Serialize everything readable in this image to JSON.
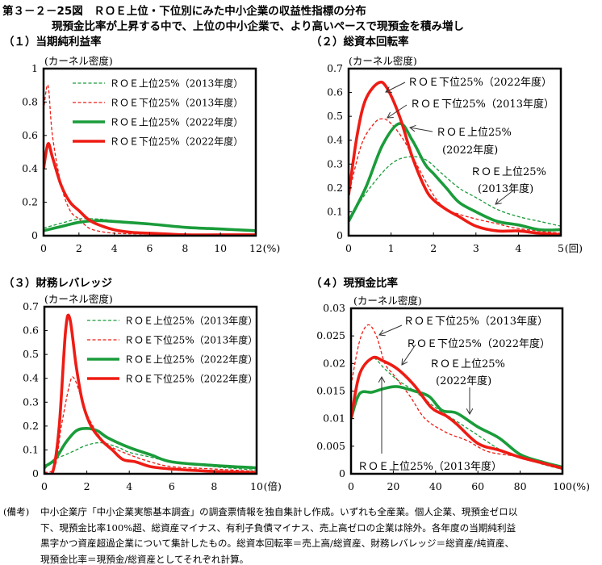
{
  "header": {
    "title": "第３－２－25図　ＲＯＥ上位・下位別にみた中小企業の収益性指標の分布",
    "subtitle": "現預金比率が上昇する中で、上位の中小企業で、より高いペースで現預金を積み増し"
  },
  "notes": {
    "label": "(備考)",
    "lines": [
      "中小企業庁「中小企業実態基本調査」の調査票情報を独自集計し作成。いずれも全産業。個人企業、現預金ゼロ以",
      "下、現預金比率100%超、総資産マイナス、有利子負債マイナス、売上高ゼロの企業は除外。各年度の当期純利益",
      "黒字かつ資産超過企業について集計したもの。総資本回転率＝売上高/総資産、財務レバレッジ＝総資産/純資産、",
      "現預金比率＝現預金/総資産としてそれぞれ計算。"
    ]
  },
  "colors": {
    "green": "#1a9c3a",
    "red": "#ee1c14"
  },
  "chart_data": [
    {
      "type": "line",
      "title": "（１）当期純利益率",
      "ylabel": "(カーネル密度)",
      "xunit": "(%)",
      "xlim": [
        0,
        12
      ],
      "ylim": [
        0,
        1
      ],
      "xticks": [
        0,
        2,
        4,
        6,
        8,
        10,
        12
      ],
      "yticks": [
        0,
        0.2,
        0.4,
        0.6,
        0.8,
        1
      ],
      "ytick_labels": [
        "0",
        "0.2",
        "0.4",
        "0.6",
        "0.8",
        "1"
      ],
      "legend": "top-right",
      "series": [
        {
          "name": "ＲＯＥ上位25%（2013年度）",
          "color": "green",
          "style": "dashed",
          "x": [
            0,
            1,
            2,
            3,
            4,
            6,
            8,
            10,
            12
          ],
          "y": [
            0.045,
            0.075,
            0.1,
            0.1,
            0.09,
            0.07,
            0.055,
            0.04,
            0.025
          ]
        },
        {
          "name": "ＲＯＥ下位25%（2013年度）",
          "color": "red",
          "style": "dashed",
          "x": [
            0,
            0.25,
            0.5,
            1,
            1.5,
            2,
            2.5,
            3,
            4,
            6,
            12
          ],
          "y": [
            0.75,
            0.9,
            0.6,
            0.3,
            0.15,
            0.1,
            0.05,
            0.03,
            0.015,
            0.01,
            0.005
          ]
        },
        {
          "name": "ＲＯＥ上位25%（2022年度）",
          "color": "green",
          "style": "solid",
          "x": [
            0,
            1,
            2,
            3,
            4,
            6,
            8,
            10,
            12
          ],
          "y": [
            0.03,
            0.055,
            0.08,
            0.09,
            0.085,
            0.07,
            0.05,
            0.04,
            0.03
          ]
        },
        {
          "name": "ＲＯＥ下位25%（2022年度）",
          "color": "red",
          "style": "solid",
          "x": [
            0,
            0.25,
            0.5,
            1,
            1.5,
            2,
            2.5,
            3,
            4,
            5,
            6,
            7,
            8,
            10,
            12
          ],
          "y": [
            0.4,
            0.55,
            0.47,
            0.3,
            0.2,
            0.15,
            0.1,
            0.07,
            0.035,
            0.02,
            0.015,
            0.01,
            0.005,
            0.005,
            0.005
          ]
        }
      ]
    },
    {
      "type": "line",
      "title": "（２）総資本回転率",
      "ylabel": "(カーネル密度)",
      "xunit": "(回)",
      "xlim": [
        0,
        5
      ],
      "ylim": [
        0,
        0.7
      ],
      "xticks": [
        0,
        1,
        2,
        3,
        4,
        5
      ],
      "yticks": [
        0,
        0.1,
        0.2,
        0.3,
        0.4,
        0.5,
        0.6,
        0.7
      ],
      "ytick_labels": [
        "0",
        "0.1",
        "0.2",
        "0.3",
        "0.4",
        "0.5",
        "0.6",
        "0.7"
      ],
      "annotations": [
        {
          "lines": [
            "ＲＯＥ下位25%（2022年度）"
          ]
        },
        {
          "lines": [
            "ＲＯＥ下位25%（2013年度）"
          ]
        },
        {
          "lines": [
            "ＲＯＥ上位25%",
            "(2022年度)"
          ]
        },
        {
          "lines": [
            "ＲＯＥ上位25%",
            "(2013年度)"
          ]
        }
      ],
      "series": [
        {
          "name": "ＲＯＥ上位25%（2013年度）",
          "color": "green",
          "style": "dashed",
          "x": [
            0,
            0.5,
            1,
            1.4,
            1.8,
            2.2,
            2.6,
            3,
            3.5,
            4,
            4.5,
            5
          ],
          "y": [
            0.07,
            0.2,
            0.3,
            0.33,
            0.32,
            0.26,
            0.2,
            0.16,
            0.11,
            0.08,
            0.06,
            0.04
          ]
        },
        {
          "name": "ＲＯＥ下位25%（2013年度）",
          "color": "red",
          "style": "dashed",
          "x": [
            0,
            0.3,
            0.6,
            0.8,
            1,
            1.3,
            1.6,
            2,
            2.3,
            2.6,
            3,
            3.5,
            4,
            5
          ],
          "y": [
            0.17,
            0.38,
            0.47,
            0.49,
            0.47,
            0.4,
            0.3,
            0.17,
            0.11,
            0.09,
            0.07,
            0.05,
            0.03,
            0.01
          ]
        },
        {
          "name": "ＲＯＥ上位25%（2022年度）",
          "color": "green",
          "style": "solid",
          "x": [
            0,
            0.4,
            0.8,
            1.2,
            1.5,
            1.8,
            2,
            2.3,
            2.6,
            3,
            3.5,
            4,
            4.5,
            5
          ],
          "y": [
            0.06,
            0.2,
            0.38,
            0.47,
            0.4,
            0.3,
            0.26,
            0.2,
            0.14,
            0.1,
            0.06,
            0.045,
            0.025,
            0.025
          ]
        },
        {
          "name": "ＲＯＥ下位25%（2022年度）",
          "color": "red",
          "style": "solid",
          "x": [
            0,
            0.2,
            0.4,
            0.7,
            0.9,
            1.2,
            1.5,
            1.8,
            2,
            2.3,
            2.6,
            3,
            3.5,
            4,
            4.5,
            5
          ],
          "y": [
            0.17,
            0.42,
            0.57,
            0.64,
            0.62,
            0.5,
            0.33,
            0.2,
            0.15,
            0.11,
            0.08,
            0.04,
            0.02,
            0.02,
            0.01,
            0.005
          ]
        }
      ]
    },
    {
      "type": "line",
      "title": "（３）財務レバレッジ",
      "ylabel": "(カーネル密度)",
      "xunit": "(倍)",
      "xlim": [
        0,
        10
      ],
      "ylim": [
        0,
        0.7
      ],
      "xticks": [
        0,
        2,
        4,
        6,
        8,
        10
      ],
      "yticks": [
        0,
        0.1,
        0.2,
        0.3,
        0.4,
        0.5,
        0.6,
        0.7
      ],
      "ytick_labels": [
        "0",
        "0.1",
        "0.2",
        "0.3",
        "0.4",
        "0.5",
        "0.6",
        "0.7"
      ],
      "legend": "top-right",
      "series": [
        {
          "name": "ＲＯＥ上位25%（2013年度）",
          "color": "green",
          "style": "dashed",
          "x": [
            0,
            0.5,
            1,
            1.5,
            2,
            2.7,
            3.5,
            4,
            5,
            6,
            8,
            10
          ],
          "y": [
            0.02,
            0.06,
            0.08,
            0.1,
            0.12,
            0.13,
            0.11,
            0.09,
            0.07,
            0.05,
            0.03,
            0.015
          ]
        },
        {
          "name": "ＲＯＥ下位25%（2013年度）",
          "color": "red",
          "style": "dashed",
          "x": [
            0,
            0.5,
            0.8,
            1.2,
            1.4,
            1.7,
            2,
            2.5,
            3,
            4,
            5,
            6,
            8,
            10
          ],
          "y": [
            0.005,
            0.03,
            0.2,
            0.38,
            0.4,
            0.33,
            0.25,
            0.17,
            0.12,
            0.08,
            0.05,
            0.03,
            0.02,
            0.01
          ]
        },
        {
          "name": "ＲＯＥ上位25%（2022年度）",
          "color": "green",
          "style": "solid",
          "x": [
            0,
            0.5,
            1,
            1.5,
            2,
            2.5,
            3,
            4,
            5,
            6,
            8,
            10
          ],
          "y": [
            0.03,
            0.06,
            0.13,
            0.18,
            0.19,
            0.18,
            0.15,
            0.11,
            0.08,
            0.05,
            0.035,
            0.025
          ]
        },
        {
          "name": "ＲＯＥ下位25%（2022年度）",
          "color": "red",
          "style": "solid",
          "x": [
            0,
            0.4,
            0.7,
            1,
            1.2,
            1.5,
            1.8,
            2.2,
            2.7,
            3.2,
            3.7,
            4.3,
            5,
            6,
            8,
            10
          ],
          "y": [
            0,
            0.01,
            0.2,
            0.6,
            0.65,
            0.45,
            0.3,
            0.2,
            0.14,
            0.1,
            0.06,
            0.05,
            0.03,
            0.02,
            0.01,
            0.005
          ]
        }
      ]
    },
    {
      "type": "line",
      "title": "（４）現預金比率",
      "ylabel": "(カーネル密度)",
      "xunit": "(%)",
      "xlim": [
        0,
        100
      ],
      "ylim": [
        0,
        0.03
      ],
      "xticks": [
        0,
        20,
        40,
        60,
        80,
        100
      ],
      "yticks": [
        0,
        0.005,
        0.01,
        0.015,
        0.02,
        0.025,
        0.03
      ],
      "ytick_labels": [
        "0",
        "0.005",
        "0.01",
        "0.015",
        "0.02",
        "0.025",
        "0.03"
      ],
      "annotations": [
        {
          "lines": [
            "ＲＯＥ下位25%（2013年度）"
          ]
        },
        {
          "lines": [
            "ＲＯＥ下位25%（2022年度）"
          ]
        },
        {
          "lines": [
            "ＲＯＥ上位25%",
            "(2022年度)"
          ]
        },
        {
          "lines": [
            "ＲＯＥ上位25%（2013年度）"
          ]
        }
      ],
      "series": [
        {
          "name": "ＲＯＥ上位25%（2013年度）",
          "color": "green",
          "style": "dashed",
          "x": [
            0,
            4,
            10,
            16,
            22,
            30,
            40,
            50,
            60,
            70,
            80,
            90,
            100
          ],
          "y": [
            0.01,
            0.018,
            0.021,
            0.019,
            0.017,
            0.015,
            0.012,
            0.0095,
            0.007,
            0.0045,
            0.003,
            0.0018,
            0.0008
          ]
        },
        {
          "name": "ＲＯＥ下位25%（2013年度）",
          "color": "red",
          "style": "dashed",
          "x": [
            0,
            4,
            8,
            12,
            16,
            20,
            28,
            35,
            45,
            55,
            65,
            80,
            100
          ],
          "y": [
            0.016,
            0.024,
            0.027,
            0.025,
            0.02,
            0.018,
            0.014,
            0.01,
            0.0075,
            0.006,
            0.004,
            0.003,
            0.0008
          ]
        },
        {
          "name": "ＲＯＥ上位25%（2022年度）",
          "color": "green",
          "style": "solid",
          "x": [
            0,
            4,
            10,
            16,
            22,
            30,
            37,
            43,
            50,
            60,
            70,
            80,
            90,
            100
          ],
          "y": [
            0.01,
            0.0145,
            0.0148,
            0.0155,
            0.0158,
            0.015,
            0.014,
            0.0115,
            0.011,
            0.0085,
            0.0065,
            0.0035,
            0.0022,
            0.0012
          ]
        },
        {
          "name": "ＲＯＥ下位25%（2022年度）",
          "color": "red",
          "style": "solid",
          "x": [
            0,
            4,
            10,
            15,
            22,
            30,
            38,
            45,
            50,
            60,
            70,
            80,
            90,
            100
          ],
          "y": [
            0.01,
            0.018,
            0.021,
            0.0205,
            0.019,
            0.016,
            0.012,
            0.0105,
            0.009,
            0.0055,
            0.0043,
            0.003,
            0.002,
            0.001
          ]
        }
      ]
    }
  ]
}
